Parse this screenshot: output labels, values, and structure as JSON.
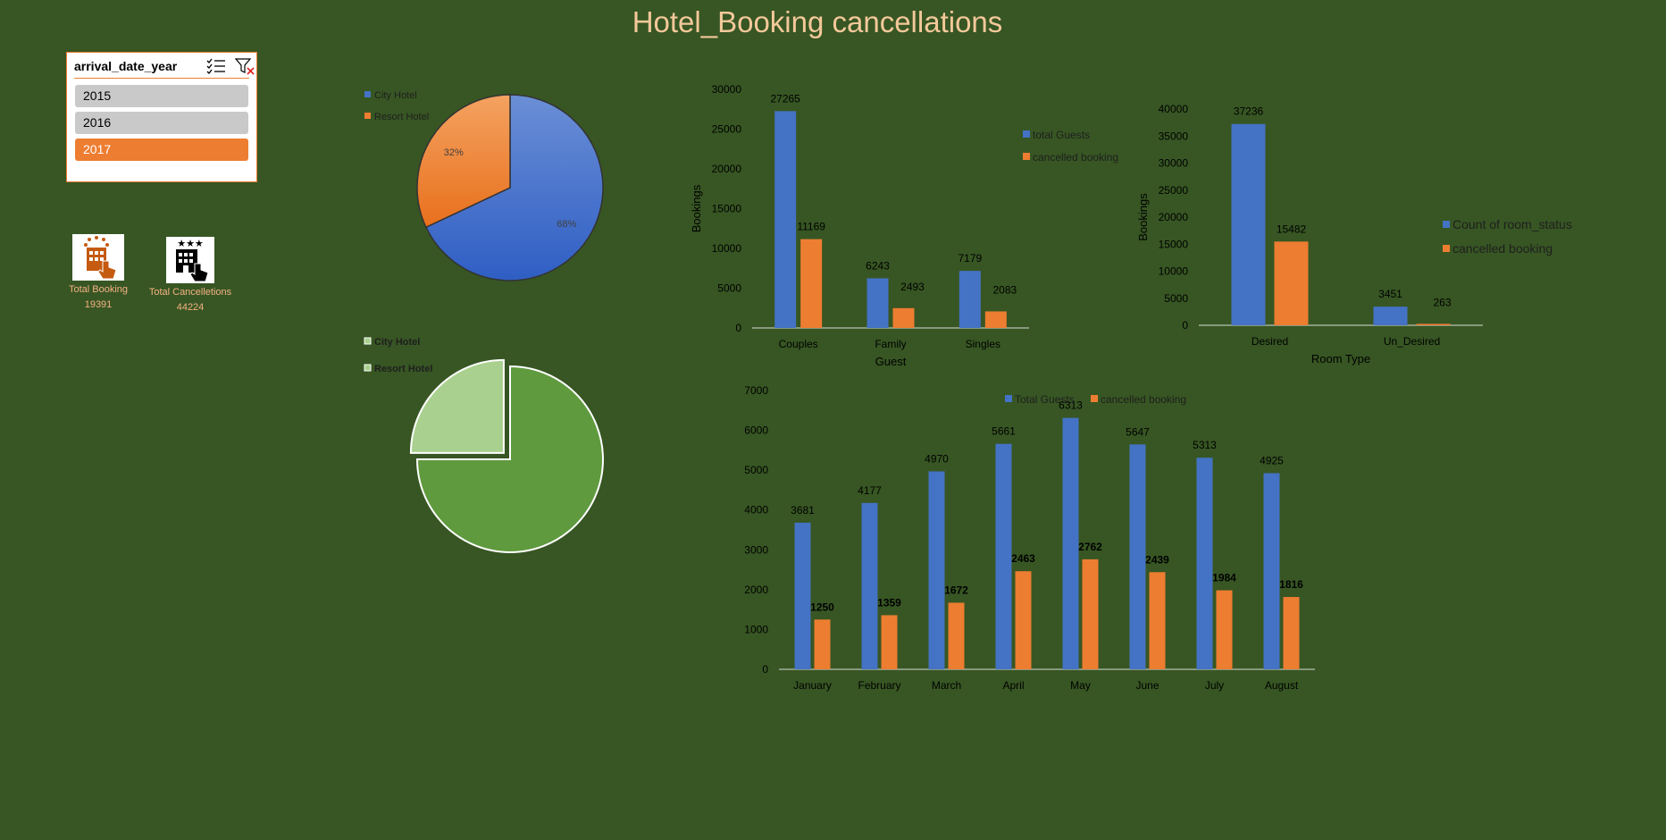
{
  "title": "Hotel_Booking cancellations",
  "slicer": {
    "title": "arrival_date_year",
    "multiselect_icon": "multi-select-icon",
    "clear_icon": "clear-filter-icon",
    "items": [
      {
        "label": "2015",
        "selected": false
      },
      {
        "label": "2016",
        "selected": false
      },
      {
        "label": "2017",
        "selected": true
      }
    ]
  },
  "kpis": [
    {
      "label": "Total Booking",
      "value": "19391",
      "icon": "hotel-touch-icon",
      "color": "#c55a11"
    },
    {
      "label": "Total Cancelletions",
      "value": "44224",
      "icon": "hotel-stars-touch-icon",
      "color": "#000000"
    }
  ],
  "colors": {
    "blue": "#4472c4",
    "orange": "#ed7d31",
    "background": "#375623",
    "title": "#f4c89a",
    "green": "#5f9a3e",
    "light_green": "#a9d08e"
  },
  "chart_data": [
    {
      "id": "pie-hotel",
      "type": "pie",
      "categories": [
        "City Hotel",
        "Resort Hotel"
      ],
      "values": [
        68,
        32
      ],
      "labels": [
        "68%",
        "32%"
      ],
      "legend": "top-left"
    },
    {
      "id": "pie-hotel-2",
      "type": "pie",
      "categories": [
        "City Hotel",
        "Resort Hotel"
      ],
      "values": [
        75,
        25
      ],
      "legend": "top-left"
    },
    {
      "id": "bar-guest",
      "type": "bar",
      "categories": [
        "Couples",
        "Family",
        "Singles"
      ],
      "series": [
        {
          "name": "total Guests",
          "values": [
            27265,
            6243,
            7179
          ]
        },
        {
          "name": "cancelled booking",
          "values": [
            11169,
            2493,
            2083
          ]
        }
      ],
      "xlabel": "Guest",
      "ylabel": "Bookings",
      "ylim": [
        0,
        30000
      ],
      "yticks": [
        0,
        5000,
        10000,
        15000,
        20000,
        25000,
        30000
      ],
      "legend": "right"
    },
    {
      "id": "bar-room",
      "type": "bar",
      "categories": [
        "Desired",
        "Un_Desired"
      ],
      "series": [
        {
          "name": "Count of room_status",
          "values": [
            37236,
            3451
          ]
        },
        {
          "name": "cancelled booking",
          "values": [
            15482,
            263
          ]
        }
      ],
      "xlabel": "Room Type",
      "ylabel": "Bookings",
      "ylim": [
        0,
        40000
      ],
      "yticks": [
        0,
        5000,
        10000,
        15000,
        20000,
        25000,
        30000,
        35000,
        40000
      ],
      "legend": "right"
    },
    {
      "id": "bar-month",
      "type": "bar",
      "categories": [
        "January",
        "February",
        "March",
        "April",
        "May",
        "June",
        "July",
        "August"
      ],
      "series": [
        {
          "name": "Total Guests",
          "values": [
            3681,
            4177,
            4970,
            5661,
            6313,
            5647,
            5313,
            4925
          ]
        },
        {
          "name": "cancelled booking",
          "values": [
            1250,
            1359,
            1672,
            2463,
            2762,
            2439,
            1984,
            1816
          ]
        }
      ],
      "xlabel": "",
      "ylabel": "",
      "ylim": [
        0,
        7000
      ],
      "yticks": [
        0,
        1000,
        2000,
        3000,
        4000,
        5000,
        6000,
        7000
      ],
      "legend": "top"
    }
  ]
}
